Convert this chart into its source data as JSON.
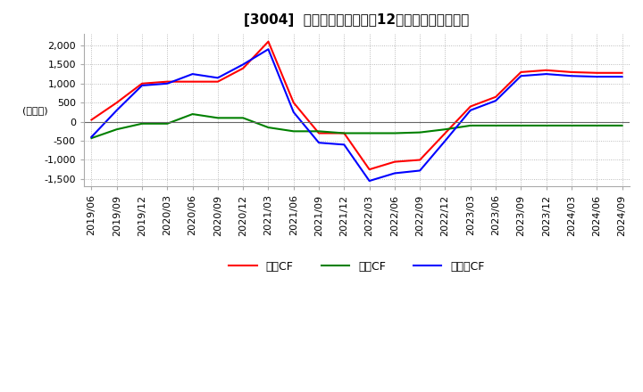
{
  "title": "　3004、キャッシュフローの12か月移動合計の推移",
  "title_display": "[3004]  キャッシュフローの12か月移動合計の推移",
  "ylabel": "(百万円)",
  "ylim": [
    -1700,
    2300
  ],
  "yticks": [
    -1500,
    -1000,
    -500,
    0,
    500,
    1000,
    1500,
    2000
  ],
  "legend_labels": [
    "営業CF",
    "投資CF",
    "フリーCF"
  ],
  "colors": {
    "eigyo": "#ff0000",
    "toshi": "#008000",
    "free": "#0000ff"
  },
  "dates": [
    "2019/06",
    "2019/09",
    "2019/12",
    "2020/03",
    "2020/06",
    "2020/09",
    "2020/12",
    "2021/03",
    "2021/06",
    "2021/09",
    "2021/12",
    "2022/03",
    "2022/06",
    "2022/09",
    "2022/12",
    "2023/03",
    "2023/06",
    "2023/09",
    "2023/12",
    "2024/03",
    "2024/06",
    "2024/09"
  ],
  "eigyo_cf": [
    50,
    500,
    1000,
    1050,
    1050,
    1050,
    1400,
    2100,
    500,
    -300,
    -300,
    -1250,
    -1050,
    -1000,
    -300,
    400,
    650,
    1300,
    1350,
    1300,
    1280,
    1280
  ],
  "toshi_cf": [
    -430,
    -200,
    -50,
    -50,
    200,
    100,
    100,
    -150,
    -250,
    -250,
    -300,
    -300,
    -300,
    -280,
    -200,
    -100,
    -100,
    -100,
    -100,
    -100,
    -100,
    -100
  ],
  "free_cf": [
    -400,
    300,
    950,
    1000,
    1250,
    1150,
    1500,
    1900,
    250,
    -550,
    -600,
    -1550,
    -1350,
    -1280,
    -500,
    300,
    550,
    1200,
    1250,
    1200,
    1180,
    1180
  ],
  "background_color": "#ffffff",
  "plot_bg_color": "#ffffff",
  "grid_color": "#aaaaaa",
  "grid_style": "dotted",
  "title_fontsize": 11,
  "axis_fontsize": 8,
  "legend_fontsize": 9
}
